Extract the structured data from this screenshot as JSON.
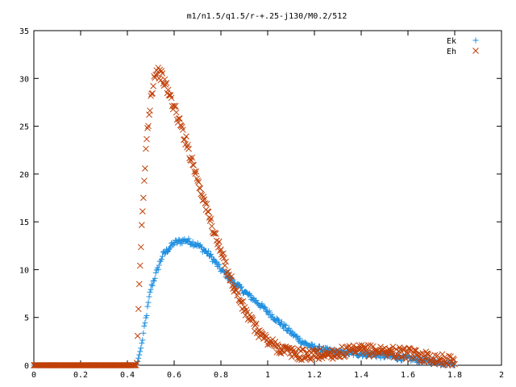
{
  "chart_data": {
    "type": "scatter",
    "title": "m1/n1.5/q1.5/r-+.25-j130/M0.2/512",
    "xlabel": "",
    "ylabel": "",
    "xlim": [
      0,
      2
    ],
    "ylim": [
      0,
      35
    ],
    "xticks": [
      "0",
      "0.2",
      "0.4",
      "0.6",
      "0.8",
      "1",
      "1.2",
      "1.4",
      "1.6",
      "1.8",
      "2"
    ],
    "yticks": [
      "0",
      "5",
      "10",
      "15",
      "20",
      "25",
      "30",
      "35"
    ],
    "grid": false,
    "legend_position": "top-right",
    "x_points": {
      "start": 0,
      "end": 1.8,
      "count": 512
    },
    "series": [
      {
        "name": "Ek",
        "marker": "plus",
        "color": "#1f8fe0",
        "onset": 0.44,
        "keypoints": [
          [
            0,
            0
          ],
          [
            0.44,
            0
          ],
          [
            0.46,
            2.0
          ],
          [
            0.5,
            8.0
          ],
          [
            0.55,
            11.5
          ],
          [
            0.6,
            12.8
          ],
          [
            0.65,
            13.1
          ],
          [
            0.7,
            12.6
          ],
          [
            0.75,
            11.6
          ],
          [
            0.8,
            10.0
          ],
          [
            0.85,
            8.8
          ],
          [
            0.9,
            7.7
          ],
          [
            0.95,
            6.7
          ],
          [
            1.0,
            5.6
          ],
          [
            1.05,
            4.5
          ],
          [
            1.1,
            3.4
          ],
          [
            1.15,
            2.4
          ],
          [
            1.2,
            1.8
          ],
          [
            1.3,
            1.3
          ],
          [
            1.4,
            1.2
          ],
          [
            1.5,
            1.0
          ],
          [
            1.6,
            0.7
          ],
          [
            1.7,
            0.4
          ],
          [
            1.8,
            0.15
          ]
        ]
      },
      {
        "name": "Eh",
        "marker": "cross",
        "color": "#c04008",
        "onset": 0.44,
        "keypoints": [
          [
            0,
            0
          ],
          [
            0.44,
            0
          ],
          [
            0.45,
            8.0
          ],
          [
            0.46,
            13.5
          ],
          [
            0.47,
            18.0
          ],
          [
            0.48,
            23.0
          ],
          [
            0.5,
            28.0
          ],
          [
            0.52,
            30.8
          ],
          [
            0.54,
            30.5
          ],
          [
            0.56,
            29.5
          ],
          [
            0.6,
            27.0
          ],
          [
            0.65,
            23.5
          ],
          [
            0.7,
            19.5
          ],
          [
            0.75,
            15.5
          ],
          [
            0.8,
            11.8
          ],
          [
            0.85,
            8.5
          ],
          [
            0.9,
            5.8
          ],
          [
            0.95,
            3.8
          ],
          [
            1.0,
            2.5
          ],
          [
            1.05,
            1.8
          ],
          [
            1.1,
            1.3
          ],
          [
            1.15,
            1.1
          ],
          [
            1.2,
            1.1
          ],
          [
            1.3,
            1.3
          ],
          [
            1.4,
            1.55
          ],
          [
            1.5,
            1.5
          ],
          [
            1.6,
            1.2
          ],
          [
            1.7,
            0.8
          ],
          [
            1.8,
            0.3
          ]
        ]
      }
    ]
  }
}
